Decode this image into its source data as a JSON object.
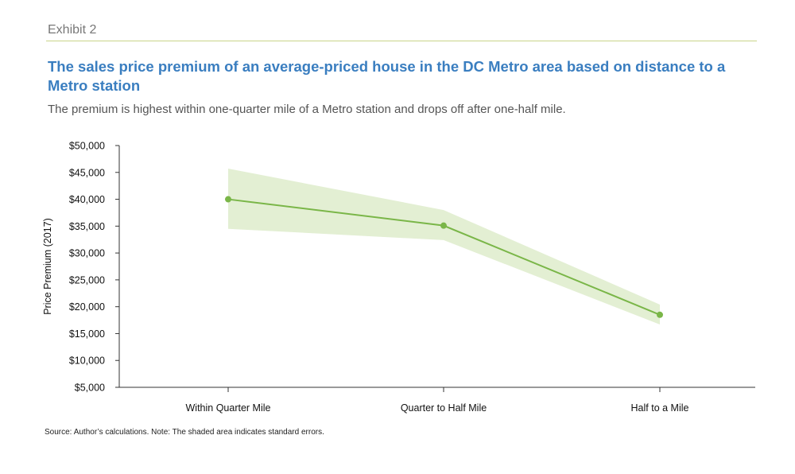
{
  "header": {
    "exhibit": "Exhibit 2",
    "title": "The sales price premium of an average-priced house in the DC Metro area based on distance to a Metro station",
    "subtitle": "The premium is highest within one-quarter mile of a Metro station and drops off after one-half mile."
  },
  "footer": {
    "source": "Source: Author’s calculations. Note: The shaded area indicates standard errors."
  },
  "colors": {
    "line": "#7ab648",
    "band": "#e3efd3",
    "axis": "#333333"
  },
  "chart_data": {
    "type": "line",
    "title": "",
    "xlabel": "",
    "ylabel": "Price Premium (2017)",
    "ylim": [
      5000,
      50000
    ],
    "yticks": [
      5000,
      10000,
      15000,
      20000,
      25000,
      30000,
      35000,
      40000,
      45000,
      50000
    ],
    "ytick_labels": [
      "$5,000",
      "$10,000",
      "$15,000",
      "$20,000",
      "$25,000",
      "$30,000",
      "$35,000",
      "$40,000",
      "$45,000",
      "$50,000"
    ],
    "categories": [
      "Within Quarter Mile",
      "Quarter to Half Mile",
      "Half to a Mile"
    ],
    "series": [
      {
        "values": [
          40000,
          35100,
          18500
        ],
        "upper": [
          45700,
          38000,
          20400
        ],
        "lower": [
          34500,
          32400,
          16700
        ]
      }
    ],
    "grid": false,
    "legend": "none"
  }
}
